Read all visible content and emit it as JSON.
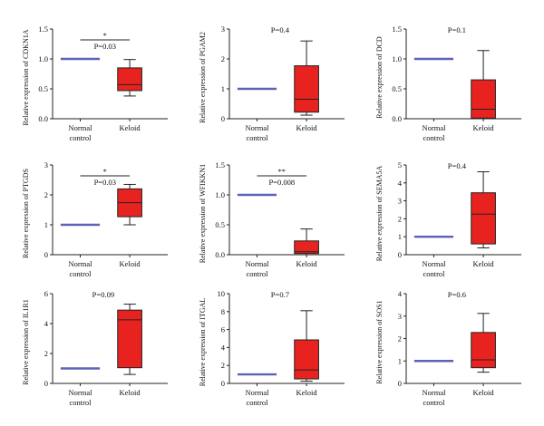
{
  "colors": {
    "normal": "#5a63b5",
    "box_fill": "#e8231f",
    "box_stroke": "#222222",
    "axis": "#222222"
  },
  "chart_data": [
    {
      "type": "box",
      "ylabel": "Relative expression of CDKN1A",
      "ylim": [
        0,
        1.5
      ],
      "yticks": [
        "0.0",
        "0.5",
        "1.0",
        "1.5"
      ],
      "categories": [
        "Normal control",
        "Keloid"
      ],
      "normal_value": 1.0,
      "keloid": {
        "min": 0.38,
        "q1": 0.47,
        "median": 0.57,
        "q3": 0.85,
        "max": 0.99
      },
      "pvalue": "P=0.03",
      "significance": "*"
    },
    {
      "type": "box",
      "ylabel": "Relative expression of PGAM2",
      "ylim": [
        0,
        3
      ],
      "yticks": [
        "0",
        "1",
        "2",
        "3"
      ],
      "categories": [
        "Normal control",
        "Keloid"
      ],
      "normal_value": 1.0,
      "keloid": {
        "min": 0.12,
        "q1": 0.22,
        "median": 0.65,
        "q3": 1.77,
        "max": 2.6
      },
      "pvalue": "P=0.4",
      "significance": ""
    },
    {
      "type": "box",
      "ylabel": "Relative expression of DCD",
      "ylim": [
        0,
        1.5
      ],
      "yticks": [
        "0.0",
        "0.5",
        "1.0",
        "1.5"
      ],
      "categories": [
        "Normal control",
        "Keloid"
      ],
      "normal_value": 1.0,
      "keloid": {
        "min": 0.0,
        "q1": 0.01,
        "median": 0.16,
        "q3": 0.65,
        "max": 1.14
      },
      "pvalue": "P=0.1",
      "significance": ""
    },
    {
      "type": "box",
      "ylabel": "Relative expression of PTGDS",
      "ylim": [
        0,
        3
      ],
      "yticks": [
        "0",
        "1",
        "2",
        "3"
      ],
      "categories": [
        "Normal control",
        "Keloid"
      ],
      "normal_value": 1.0,
      "keloid": {
        "min": 1.0,
        "q1": 1.27,
        "median": 1.74,
        "q3": 2.2,
        "max": 2.35
      },
      "pvalue": "P=0.03",
      "significance": "*"
    },
    {
      "type": "box",
      "ylabel": "Relative expression of WFIKKN1",
      "ylim": [
        0,
        1.5
      ],
      "yticks": [
        "0.0",
        "0.5",
        "1.0",
        "1.5"
      ],
      "categories": [
        "Normal control",
        "Keloid"
      ],
      "normal_value": 1.0,
      "keloid": {
        "min": 0.0,
        "q1": 0.02,
        "median": 0.05,
        "q3": 0.23,
        "max": 0.43
      },
      "pvalue": "P=0.008",
      "significance": "**"
    },
    {
      "type": "box",
      "ylabel": "Relative expression of SEMA5A",
      "ylim": [
        0,
        5
      ],
      "yticks": [
        "0",
        "1",
        "2",
        "3",
        "4",
        "5"
      ],
      "categories": [
        "Normal control",
        "Keloid"
      ],
      "normal_value": 1.0,
      "keloid": {
        "min": 0.38,
        "q1": 0.6,
        "median": 2.26,
        "q3": 3.45,
        "max": 4.62
      },
      "pvalue": "P=0.4",
      "significance": ""
    },
    {
      "type": "box",
      "ylabel": "Relative expression of IL1R1",
      "ylim": [
        0,
        6
      ],
      "yticks": [
        "0",
        "2",
        "4",
        "6"
      ],
      "categories": [
        "Normal control",
        "Keloid"
      ],
      "normal_value": 1.0,
      "keloid": {
        "min": 0.6,
        "q1": 1.05,
        "median": 4.25,
        "q3": 4.9,
        "max": 5.3
      },
      "pvalue": "P=0.09",
      "significance": ""
    },
    {
      "type": "box",
      "ylabel": "Relative expression of ITGAL",
      "ylim": [
        0,
        10
      ],
      "yticks": [
        "0",
        "2",
        "4",
        "6",
        "8",
        "10"
      ],
      "categories": [
        "Normal control",
        "Keloid"
      ],
      "normal_value": 1.0,
      "keloid": {
        "min": 0.25,
        "q1": 0.5,
        "median": 1.5,
        "q3": 4.85,
        "max": 8.1
      },
      "pvalue": "P=0.7",
      "significance": ""
    },
    {
      "type": "box",
      "ylabel": "Relative expression of SOS1",
      "ylim": [
        0,
        4
      ],
      "yticks": [
        "0",
        "1",
        "2",
        "3",
        "4"
      ],
      "categories": [
        "Normal control",
        "Keloid"
      ],
      "normal_value": 1.0,
      "keloid": {
        "min": 0.5,
        "q1": 0.7,
        "median": 1.05,
        "q3": 2.27,
        "max": 3.12
      },
      "pvalue": "P=0.6",
      "significance": ""
    }
  ]
}
